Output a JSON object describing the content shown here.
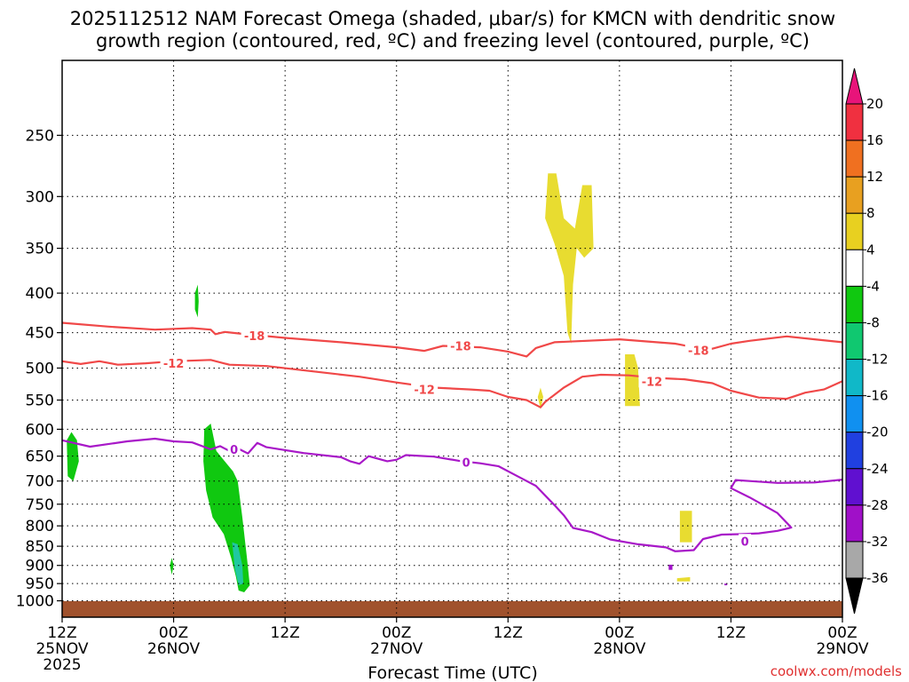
{
  "chart_data": {
    "type": "time-height",
    "title_lines": [
      "2025112512 NAM Forecast Omega (shaded, μbar/s) for KMCN with dendritic snow",
      "growth region (contoured, red, ºC) and freezing level (contoured, purple, ºC)"
    ],
    "xlabel": "Forecast Time (UTC)",
    "credit": "coolwx.com/models",
    "x_ticks": [
      {
        "hour": 0,
        "top": "12Z",
        "bottom": "25NOV",
        "extra": "2025"
      },
      {
        "hour": 12,
        "top": "00Z",
        "bottom": "26NOV"
      },
      {
        "hour": 24,
        "top": "12Z",
        "bottom": ""
      },
      {
        "hour": 36,
        "top": "00Z",
        "bottom": "27NOV"
      },
      {
        "hour": 48,
        "top": "12Z",
        "bottom": ""
      },
      {
        "hour": 60,
        "top": "00Z",
        "bottom": "28NOV"
      },
      {
        "hour": 72,
        "top": "12Z",
        "bottom": ""
      },
      {
        "hour": 84,
        "top": "00Z",
        "bottom": "29NOV"
      }
    ],
    "xlim": [
      0,
      84
    ],
    "ylim_hpa": [
      1050,
      200
    ],
    "y_ticks": [
      250,
      300,
      350,
      400,
      450,
      500,
      550,
      600,
      650,
      700,
      750,
      800,
      850,
      900,
      950,
      1000
    ],
    "colorbar": {
      "labels": [
        "20",
        "16",
        "12",
        "8",
        "4",
        "-4",
        "-8",
        "-12",
        "-16",
        "-20",
        "-24",
        "-28",
        "-32",
        "-36"
      ],
      "colors": [
        "#f03040",
        "#f07020",
        "#e8a020",
        "#e8d020",
        "#ffffff",
        "#10c810",
        "#10c870",
        "#10b8c8",
        "#1090f0",
        "#2040e0",
        "#6010d0",
        "#a010c8",
        "#a8a8a8"
      ],
      "top_arrow_color": "#e8147a",
      "bottom_arrow_color": "#000000"
    },
    "contours": [
      {
        "name": "temp-contour-minus18",
        "label": "-18",
        "color": "#f04848",
        "label_points": [
          [
            20.7,
            454
          ],
          [
            42.9,
            468
          ],
          [
            68.5,
            474
          ]
        ],
        "points": [
          [
            0,
            437
          ],
          [
            5,
            442
          ],
          [
            10,
            446
          ],
          [
            14,
            444
          ],
          [
            16,
            446
          ],
          [
            16.5,
            452
          ],
          [
            17.5,
            449
          ],
          [
            19,
            451
          ],
          [
            24,
            457
          ],
          [
            30,
            463
          ],
          [
            36,
            470
          ],
          [
            39,
            475
          ],
          [
            41,
            468
          ],
          [
            45,
            470
          ],
          [
            48,
            476
          ],
          [
            50,
            483
          ],
          [
            51,
            471
          ],
          [
            53,
            463
          ],
          [
            60,
            459
          ],
          [
            66,
            465
          ],
          [
            68,
            470
          ],
          [
            70,
            472
          ],
          [
            72,
            465
          ],
          [
            74,
            461
          ],
          [
            78,
            455
          ],
          [
            81,
            459
          ],
          [
            84,
            463
          ]
        ]
      },
      {
        "name": "temp-contour-minus12",
        "label": "-12",
        "color": "#f04848",
        "label_points": [
          [
            12,
            493
          ],
          [
            39,
            533
          ],
          [
            63.5,
            520
          ]
        ],
        "points": [
          [
            0,
            490
          ],
          [
            2,
            494
          ],
          [
            4,
            490
          ],
          [
            6,
            495
          ],
          [
            9,
            493
          ],
          [
            12,
            490
          ],
          [
            16,
            488
          ],
          [
            18,
            495
          ],
          [
            22,
            497
          ],
          [
            27,
            505
          ],
          [
            32,
            513
          ],
          [
            36,
            522
          ],
          [
            40,
            530
          ],
          [
            44,
            533
          ],
          [
            46,
            535
          ],
          [
            48,
            545
          ],
          [
            50,
            550
          ],
          [
            51.5,
            562
          ],
          [
            52,
            553
          ],
          [
            54,
            530
          ],
          [
            56,
            513
          ],
          [
            58,
            510
          ],
          [
            61,
            511
          ],
          [
            64,
            515
          ],
          [
            67,
            517
          ],
          [
            70,
            523
          ],
          [
            72,
            535
          ],
          [
            75,
            546
          ],
          [
            78,
            548
          ],
          [
            80,
            538
          ],
          [
            82,
            533
          ],
          [
            84,
            520
          ]
        ]
      },
      {
        "name": "freezing-level-contour-0",
        "label": "0",
        "color": "#a818c8",
        "label_points": [
          [
            18.5,
            637
          ],
          [
            43.5,
            662
          ],
          [
            73.5,
            837
          ]
        ],
        "points": [
          [
            0,
            620
          ],
          [
            3,
            632
          ],
          [
            7,
            622
          ],
          [
            10,
            617
          ],
          [
            12,
            622
          ],
          [
            14,
            624
          ],
          [
            16,
            637
          ],
          [
            17,
            631
          ],
          [
            18,
            640
          ],
          [
            19,
            636
          ],
          [
            20,
            645
          ],
          [
            21,
            625
          ],
          [
            22,
            633
          ],
          [
            26,
            644
          ],
          [
            30,
            652
          ],
          [
            31,
            660
          ],
          [
            32,
            665
          ],
          [
            33,
            650
          ],
          [
            35,
            660
          ],
          [
            36,
            657
          ],
          [
            37,
            648
          ],
          [
            40,
            651
          ],
          [
            43,
            660
          ],
          [
            45,
            664
          ],
          [
            47,
            670
          ],
          [
            49,
            690
          ],
          [
            51,
            710
          ],
          [
            53,
            752
          ],
          [
            54,
            775
          ],
          [
            55,
            805
          ],
          [
            57,
            815
          ],
          [
            59,
            833
          ],
          [
            62,
            845
          ],
          [
            65,
            853
          ],
          [
            66,
            863
          ],
          [
            68,
            860
          ],
          [
            69,
            832
          ],
          [
            71,
            821
          ],
          [
            73,
            820
          ],
          [
            75,
            818
          ],
          [
            77,
            812
          ],
          [
            78.5,
            804
          ],
          [
            77,
            770
          ],
          [
            74,
            735
          ],
          [
            72,
            715
          ],
          [
            72.5,
            698
          ],
          [
            74,
            700
          ],
          [
            77,
            704
          ],
          [
            81,
            703
          ],
          [
            84,
            697
          ]
        ]
      }
    ],
    "shaded_regions": [
      {
        "name": "yellow-region-upper",
        "color": "#e8dc30",
        "points": [
          [
            52.3,
            280
          ],
          [
            53.2,
            280
          ],
          [
            54,
            320
          ],
          [
            55.2,
            330
          ],
          [
            56,
            290
          ],
          [
            57,
            290
          ],
          [
            57.2,
            350
          ],
          [
            56.2,
            360
          ],
          [
            55.4,
            350
          ],
          [
            55,
            390
          ],
          [
            54.8,
            465
          ],
          [
            54.4,
            450
          ],
          [
            54,
            380
          ],
          [
            53,
            345
          ],
          [
            52,
            320
          ]
        ]
      },
      {
        "name": "yellow-region-spike",
        "color": "#e8dc30",
        "points": [
          [
            51.2,
            545
          ],
          [
            51.5,
            530
          ],
          [
            51.8,
            545
          ],
          [
            51.5,
            565
          ]
        ]
      },
      {
        "name": "yellow-region-mid",
        "color": "#e8dc30",
        "points": [
          [
            60.6,
            480
          ],
          [
            61.6,
            480
          ],
          [
            62,
            500
          ],
          [
            62.2,
            560
          ],
          [
            60.6,
            560
          ]
        ]
      },
      {
        "name": "yellow-region-low",
        "color": "#e8dc30",
        "points": [
          [
            66.5,
            765
          ],
          [
            67.8,
            765
          ],
          [
            67.8,
            840
          ],
          [
            66.5,
            840
          ]
        ]
      },
      {
        "name": "yellow-region-small",
        "color": "#e8dc30",
        "points": [
          [
            66.2,
            935
          ],
          [
            67.6,
            932
          ],
          [
            67.6,
            944
          ],
          [
            66.2,
            944
          ]
        ]
      },
      {
        "name": "green-region-left",
        "color": "#10c810",
        "points": [
          [
            0.5,
            620
          ],
          [
            1,
            605
          ],
          [
            1.6,
            620
          ],
          [
            1.8,
            660
          ],
          [
            1.2,
            700
          ],
          [
            0.6,
            690
          ]
        ]
      },
      {
        "name": "green-region-small-400",
        "color": "#10c810",
        "points": [
          [
            14.3,
            400
          ],
          [
            14.6,
            390
          ],
          [
            14.7,
            410
          ],
          [
            14.6,
            430
          ],
          [
            14.3,
            420
          ]
        ]
      },
      {
        "name": "green-region-small-900",
        "color": "#10c810",
        "points": [
          [
            11.6,
            900
          ],
          [
            11.8,
            880
          ],
          [
            12,
            900
          ],
          [
            11.8,
            925
          ]
        ]
      },
      {
        "name": "green-region-main",
        "color": "#10c810",
        "points": [
          [
            15.3,
            600
          ],
          [
            16,
            590
          ],
          [
            16.6,
            640
          ],
          [
            17.5,
            660
          ],
          [
            18.4,
            680
          ],
          [
            18.9,
            700
          ],
          [
            19.4,
            780
          ],
          [
            19.9,
            880
          ],
          [
            20.2,
            955
          ],
          [
            19.6,
            975
          ],
          [
            19,
            970
          ],
          [
            18.7,
            930
          ],
          [
            18.2,
            880
          ],
          [
            17.4,
            820
          ],
          [
            16.2,
            780
          ],
          [
            15.5,
            720
          ],
          [
            15.2,
            660
          ]
        ]
      },
      {
        "name": "teal-region-main",
        "color": "#20c8a0",
        "points": [
          [
            18.3,
            840
          ],
          [
            18.9,
            845
          ],
          [
            19.4,
            900
          ],
          [
            19.5,
            950
          ],
          [
            19,
            955
          ],
          [
            18.6,
            910
          ]
        ]
      },
      {
        "name": "purple-dot-region",
        "color": "#a010c8",
        "points": [
          [
            65.3,
            898
          ],
          [
            65.7,
            898
          ],
          [
            65.7,
            912
          ],
          [
            65.3,
            912
          ]
        ]
      },
      {
        "name": "purple-dot-region-2",
        "color": "#a010c8",
        "points": [
          [
            71.3,
            950
          ],
          [
            71.6,
            950
          ],
          [
            71.6,
            955
          ],
          [
            71.3,
            955
          ]
        ]
      }
    ],
    "ground_color": "#a0522d"
  }
}
